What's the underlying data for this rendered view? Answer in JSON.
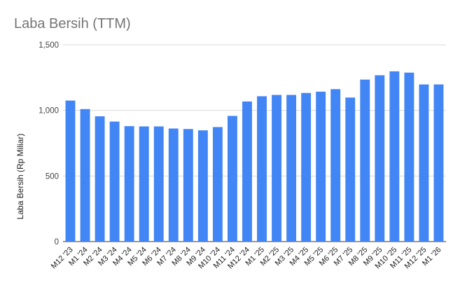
{
  "chart_data": {
    "type": "bar",
    "title": "Laba Bersih (TTM)",
    "xlabel": "",
    "ylabel": "Laba Bersih (Rp Miliar)",
    "ylim": [
      0,
      1500
    ],
    "yticks": [
      0,
      500,
      1000,
      1500
    ],
    "ytick_labels": [
      "0",
      "500",
      "1,000",
      "1,500"
    ],
    "grid": true,
    "legend": "none",
    "bar_color": "#4285f4",
    "categories": [
      "M12 '23",
      "M1 '24",
      "M2 '24",
      "M3 '24",
      "M4 '24",
      "M5 '24",
      "M6 '24",
      "M7 '24",
      "M8 '24",
      "M9 '24",
      "M10 '24",
      "M11 '24",
      "M12 '24",
      "M1 '25",
      "M2 '25",
      "M3 '25",
      "M4 '25",
      "M5 '25",
      "M6 '25",
      "M7 '25",
      "M8 '25",
      "M9 '25",
      "M10 '25",
      "M11 '25",
      "M12 '25",
      "M1 '26"
    ],
    "values": [
      1075,
      1010,
      955,
      915,
      880,
      878,
      878,
      862,
      858,
      848,
      873,
      958,
      1068,
      1108,
      1118,
      1118,
      1133,
      1143,
      1162,
      1098,
      1235,
      1268,
      1298,
      1288,
      1198,
      1198
    ]
  }
}
